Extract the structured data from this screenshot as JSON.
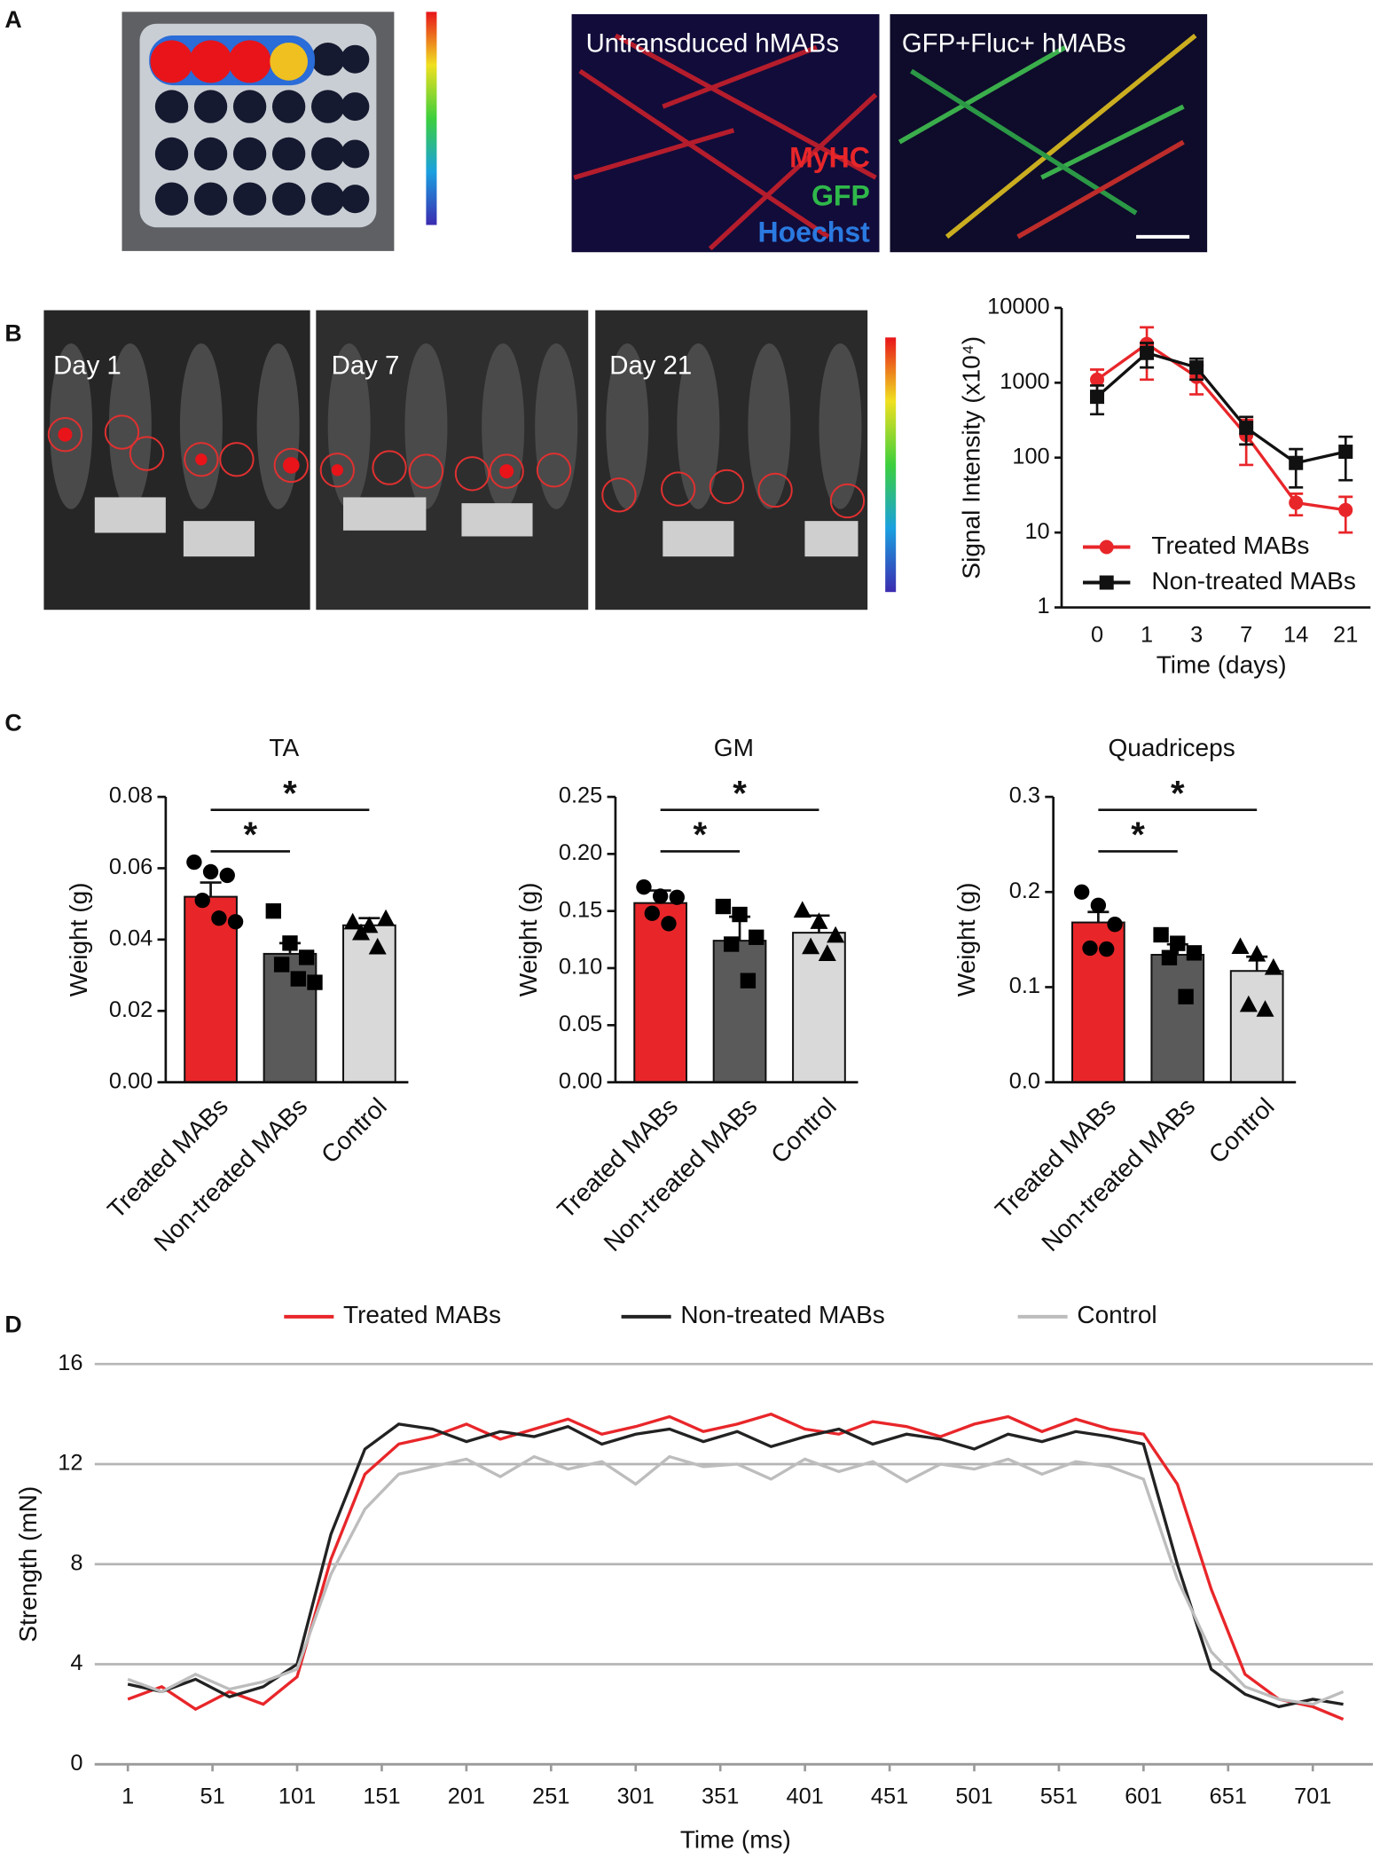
{
  "panel_labels": [
    "A",
    "B",
    "C",
    "D"
  ],
  "image_texts": {
    "untransduced": "Untransduced hMABs",
    "transduced": "GFP+Fluc+ hMABs",
    "stains": [
      "MyHC",
      "GFP",
      "Hoechst"
    ],
    "days": [
      "Day 1",
      "Day 7",
      "Day 21"
    ]
  },
  "chart_data": [
    {
      "type": "line",
      "categories": [
        "0",
        "1",
        "3",
        "7",
        "14",
        "21"
      ],
      "log_scale_y": true,
      "ylim": [
        1,
        10000
      ],
      "yticks": [
        1,
        10,
        100,
        1000,
        10000
      ],
      "ylabel": "Signal Intensity (x10⁴)",
      "xlabel": "Time (days)",
      "legend": "lower right",
      "series": [
        {
          "name": "Treated MABs",
          "color": "#e8262a",
          "marker": "circle",
          "values": [
            1100,
            3300,
            1200,
            200,
            25,
            20
          ],
          "errors": [
            400,
            2200,
            500,
            120,
            8,
            10
          ]
        },
        {
          "name": "Non-treated MABs",
          "color": "#111111",
          "marker": "square",
          "values": [
            650,
            2500,
            1600,
            250,
            85,
            120
          ],
          "errors": [
            270,
            900,
            500,
            100,
            45,
            70
          ]
        }
      ]
    },
    {
      "type": "bar",
      "title": "TA",
      "ylabel": "Weight (g)",
      "categories": [
        "Treated MABs",
        "Non-treated MABs",
        "Control"
      ],
      "colors": [
        "#e8262a",
        "#5a5a5a",
        "#d9d9d9"
      ],
      "markers": [
        "circle",
        "square",
        "triangle"
      ],
      "values": [
        0.052,
        0.036,
        0.044
      ],
      "errors": [
        0.004,
        0.003,
        0.002
      ],
      "points": [
        [
          0.0617,
          0.059,
          0.058,
          0.051,
          0.046,
          0.045
        ],
        [
          0.048,
          0.039,
          0.035,
          0.033,
          0.029,
          0.028
        ],
        [
          0.045,
          0.044,
          0.046,
          0.042,
          0.038
        ]
      ],
      "ylim": [
        0,
        0.08
      ],
      "yticks": [
        {
          "value": 0,
          "label": "0.00"
        },
        0.02,
        0.04,
        0.06,
        0.08
      ],
      "annotations": [
        {
          "label": "*",
          "between": [
            "Treated MABs",
            "Non-treated MABs"
          ]
        },
        {
          "label": "*",
          "between": [
            "Treated MABs",
            "Control"
          ]
        }
      ]
    },
    {
      "type": "bar",
      "title": "GM",
      "ylabel": "Weight (g)",
      "categories": [
        "Treated MABs",
        "Non-treated MABs",
        "Control"
      ],
      "colors": [
        "#e8262a",
        "#5a5a5a",
        "#d9d9d9"
      ],
      "markers": [
        "circle",
        "square",
        "triangle"
      ],
      "values": [
        0.157,
        0.124,
        0.131
      ],
      "errors": [
        0.011,
        0.021,
        0.015
      ],
      "points": [
        [
          0.171,
          0.163,
          0.162,
          0.148,
          0.139
        ],
        [
          0.154,
          0.147,
          0.127,
          0.121,
          0.089
        ],
        [
          0.151,
          0.141,
          0.129,
          0.119,
          0.113
        ]
      ],
      "ylim": [
        0,
        0.25
      ],
      "yticks": [
        {
          "value": 0,
          "label": "0.00"
        },
        0.05,
        {
          "value": 0.1,
          "label": "0.10"
        },
        0.15,
        {
          "value": 0.2,
          "label": "0.20"
        },
        0.25
      ],
      "annotations": [
        {
          "label": "*",
          "between": [
            "Treated MABs",
            "Non-treated MABs"
          ]
        },
        {
          "label": "*",
          "between": [
            "Treated MABs",
            "Control"
          ]
        }
      ]
    },
    {
      "type": "bar",
      "title": "Quadriceps",
      "ylabel": "Weight (g)",
      "categories": [
        "Treated MABs",
        "Non-treated MABs",
        "Control"
      ],
      "colors": [
        "#e8262a",
        "#5a5a5a",
        "#d9d9d9"
      ],
      "markers": [
        "circle",
        "square",
        "triangle"
      ],
      "values": [
        0.168,
        0.134,
        0.117
      ],
      "errors": [
        0.011,
        0.011,
        0.015
      ],
      "points": [
        [
          0.2,
          0.186,
          0.166,
          0.141,
          0.14
        ],
        [
          0.155,
          0.146,
          0.136,
          0.131,
          0.09
        ],
        [
          0.143,
          0.135,
          0.121,
          0.082,
          0.077
        ]
      ],
      "ylim": [
        0,
        0.3
      ],
      "yticks": [
        {
          "value": 0,
          "label": "0.0"
        },
        0.1,
        0.2,
        0.3
      ],
      "annotations": [
        {
          "label": "*",
          "between": [
            "Treated MABs",
            "Non-treated MABs"
          ]
        },
        {
          "label": "*",
          "between": [
            "Treated MABs",
            "Control"
          ]
        }
      ]
    },
    {
      "type": "line",
      "xlabel": "Time (ms)",
      "ylabel": "Strength (mN)",
      "legend": "top",
      "grid": true,
      "x": [
        1,
        21,
        41,
        61,
        81,
        101,
        121,
        141,
        161,
        181,
        201,
        221,
        241,
        261,
        281,
        301,
        321,
        341,
        361,
        381,
        401,
        421,
        441,
        461,
        481,
        501,
        521,
        541,
        561,
        581,
        601,
        621,
        641,
        661,
        681,
        701,
        719
      ],
      "xlim": [
        1,
        719
      ],
      "xticks": [
        1,
        51,
        101,
        151,
        201,
        251,
        301,
        351,
        401,
        451,
        501,
        551,
        601,
        651,
        701
      ],
      "ylim": [
        0,
        16
      ],
      "yticks": [
        0,
        4,
        8,
        12,
        16
      ],
      "series": [
        {
          "name": "Treated MABs",
          "color": "#e8262a",
          "values": [
            2.6,
            3.1,
            2.2,
            2.9,
            2.4,
            3.5,
            8.2,
            11.6,
            12.8,
            13.1,
            13.6,
            13.0,
            13.4,
            13.8,
            13.2,
            13.5,
            13.9,
            13.3,
            13.6,
            14.0,
            13.4,
            13.2,
            13.7,
            13.5,
            13.1,
            13.6,
            13.9,
            13.3,
            13.8,
            13.4,
            13.2,
            11.2,
            7.0,
            3.6,
            2.6,
            2.3,
            1.8
          ]
        },
        {
          "name": "Non-treated MABs",
          "color": "#222222",
          "values": [
            3.2,
            2.9,
            3.4,
            2.7,
            3.1,
            4.0,
            9.2,
            12.6,
            13.6,
            13.4,
            12.9,
            13.3,
            13.1,
            13.5,
            12.8,
            13.2,
            13.4,
            12.9,
            13.3,
            12.7,
            13.1,
            13.4,
            12.8,
            13.2,
            13.0,
            12.6,
            13.2,
            12.9,
            13.3,
            13.1,
            12.8,
            8.0,
            3.8,
            2.8,
            2.3,
            2.6,
            2.4
          ]
        },
        {
          "name": "Control",
          "color": "#bdbdbd",
          "values": [
            3.4,
            2.9,
            3.6,
            3.0,
            3.3,
            3.8,
            7.6,
            10.2,
            11.6,
            11.9,
            12.2,
            11.5,
            12.3,
            11.8,
            12.1,
            11.2,
            12.3,
            11.9,
            12.0,
            11.4,
            12.2,
            11.7,
            12.1,
            11.3,
            12.0,
            11.8,
            12.2,
            11.6,
            12.1,
            11.9,
            11.4,
            7.4,
            4.5,
            3.1,
            2.6,
            2.4,
            2.9
          ]
        }
      ]
    }
  ]
}
